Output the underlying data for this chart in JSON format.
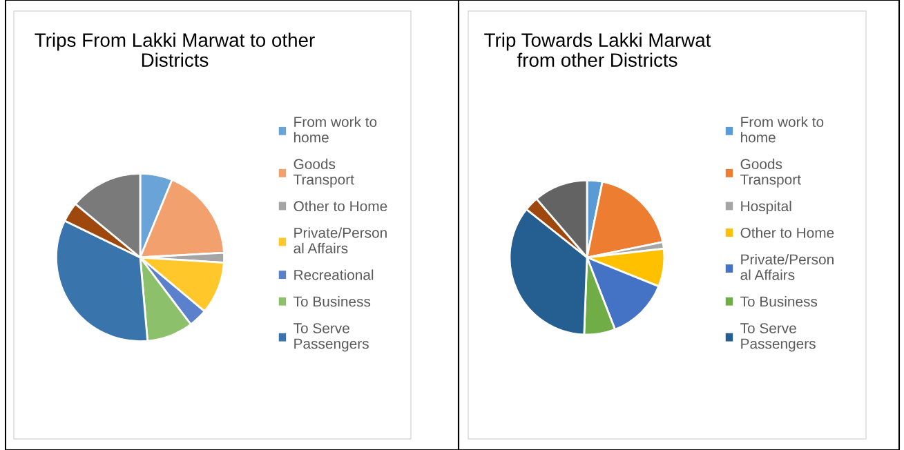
{
  "chart_data": [
    {
      "type": "pie",
      "title": "Trips From Lakki Marwat to other\nDistricts",
      "legend": "right",
      "categories": [
        "From work to\nhome",
        "Goods\nTransport",
        "Other to Home",
        "Private/Person\nal Affairs",
        "Recreational",
        "To Business",
        "To Serve\nPassengers",
        null,
        null
      ],
      "values": [
        6.2,
        17.9,
        1.9,
        10.1,
        3.6,
        8.9,
        33.6,
        3.8,
        14.0
      ],
      "colors": [
        "#6aa3d8",
        "#f2a06e",
        "#a5a5a5",
        "#ffc72a",
        "#5b80cc",
        "#8cc06a",
        "#3a74ad",
        "#9e480e",
        "#7a7a7a"
      ]
    },
    {
      "type": "pie",
      "title": "Trip Towards Lakki Marwat\nfrom other Districts",
      "legend": "right",
      "categories": [
        "From work to\nhome",
        "Goods\nTransport",
        "Hospital",
        "Other to Home",
        "Private/Person\nal Affairs",
        "To Business",
        "To Serve\nPassengers",
        null,
        null
      ],
      "values": [
        3.2,
        18.6,
        1.4,
        7.9,
        13.0,
        6.5,
        35.1,
        3.0,
        11.3
      ],
      "colors": [
        "#5b9bd5",
        "#ed7d31",
        "#a5a5a5",
        "#ffc000",
        "#4472c4",
        "#70ad47",
        "#255e91",
        "#9e480e",
        "#636363"
      ]
    }
  ]
}
